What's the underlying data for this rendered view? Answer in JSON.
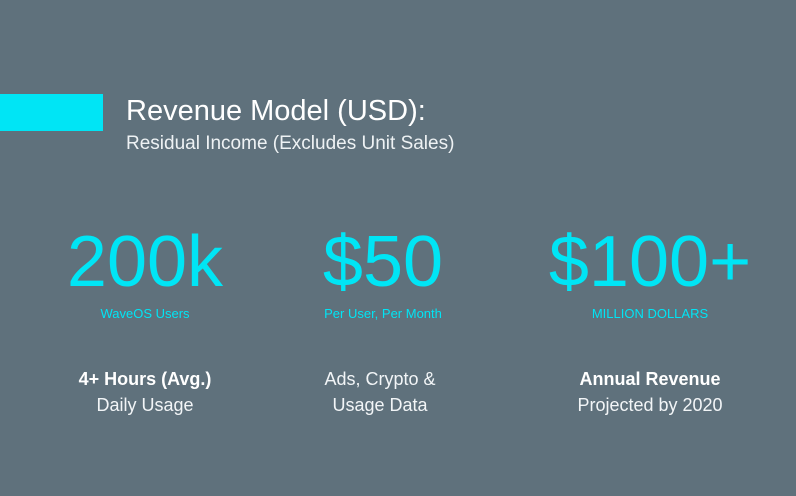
{
  "header": {
    "title": "Revenue Model (USD):",
    "subtitle": "Residual Income (Excludes Unit Sales)",
    "accent_color": "#00e5f5",
    "background_color": "#5f717c"
  },
  "stats": [
    {
      "value": "200k",
      "caption": "WaveOS Users",
      "detail_line1": "4+ Hours (Avg.)",
      "detail_line2": "Daily Usage"
    },
    {
      "value": "$50",
      "caption": "Per User, Per Month",
      "detail_line1": "Ads, Crypto &",
      "detail_line2": "Usage Data"
    },
    {
      "value": "$100+",
      "caption": "MILLION DOLLARS",
      "detail_line1": "Annual Revenue",
      "detail_line2": "Projected by 2020"
    }
  ]
}
